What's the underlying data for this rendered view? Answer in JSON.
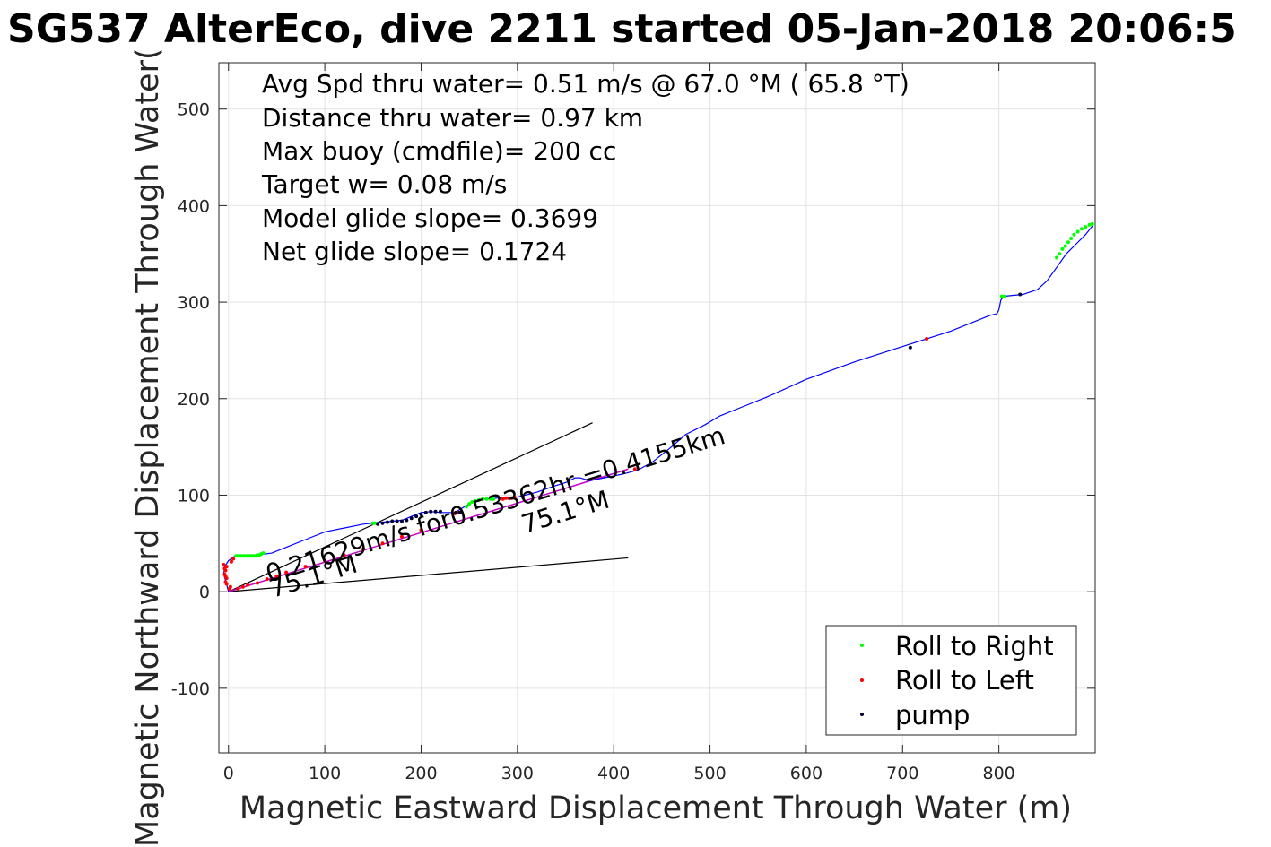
{
  "chart_data": {
    "type": "scatter",
    "title": "SG537 AlterEco, dive 2211 started 05-Jan-2018 20:06:5",
    "xlabel": "Magnetic Eastward Displacement Through Water (m)",
    "ylabel": "Magnetic Northward Displacement Through Water(",
    "xlim": [
      -10,
      900
    ],
    "ylim": [
      -167,
      548
    ],
    "xticks": [
      0,
      100,
      200,
      300,
      400,
      500,
      600,
      700,
      800
    ],
    "yticks": [
      -100,
      0,
      100,
      200,
      300,
      400,
      500
    ],
    "grid": true,
    "info_lines": [
      "Avg Spd thru water=  0.51 m/s @  67.0 °M ( 65.8 °T)",
      "Distance thru water=  0.97 km",
      "Max buoy (cmdfile)= 200 cc",
      "Target w= 0.08 m/s",
      "Model glide slope= 0.3699",
      "Net glide slope= 0.1724"
    ],
    "annotations": {
      "current": "0.21629m/s for0.53362hr =0.4155km",
      "heading_low": "75.1°M",
      "heading_high": "75.1°M"
    },
    "colors": {
      "track": "#0000ff",
      "roll_right": "#00ff00",
      "roll_left": "#ff0000",
      "pump": "#000033",
      "current_line": "#cc00cc",
      "wedge": "#000000"
    },
    "track": {
      "x": [
        0,
        -2,
        -5,
        -4,
        0,
        5,
        10,
        20,
        30,
        45,
        60,
        80,
        100,
        120,
        140,
        150,
        160,
        170,
        180,
        190,
        200,
        210,
        220,
        235,
        245,
        255,
        265,
        280,
        300,
        320,
        340,
        350,
        360,
        365,
        375,
        390,
        410,
        425,
        440,
        460,
        475,
        495,
        505,
        510,
        530,
        560,
        600,
        650,
        700,
        750,
        790,
        798,
        800,
        802,
        805,
        815,
        825,
        840,
        850,
        860,
        870,
        880,
        890,
        898
      ],
      "y": [
        0,
        8,
        18,
        26,
        32,
        36,
        38,
        37,
        38,
        40,
        46,
        54,
        62,
        66,
        70,
        71,
        72,
        73,
        74,
        78,
        82,
        83,
        82,
        82,
        88,
        94,
        96,
        97,
        98,
        103,
        110,
        113,
        118,
        118,
        115,
        118,
        122,
        126,
        134,
        150,
        163,
        173,
        179,
        182,
        190,
        202,
        220,
        238,
        254,
        270,
        286,
        288,
        292,
        302,
        306,
        307,
        308,
        313,
        322,
        336,
        350,
        360,
        370,
        380
      ]
    },
    "current_line": {
      "x": [
        0,
        415
      ],
      "y": [
        0,
        127
      ]
    },
    "wedge": {
      "upper": {
        "x": [
          0,
          378
        ],
        "y": [
          0,
          175
        ]
      },
      "lower": {
        "x": [
          0,
          415
        ],
        "y": [
          0,
          35
        ]
      }
    },
    "series": [
      {
        "name": "Roll to Right",
        "x": [
          8,
          10,
          13,
          16,
          18,
          20,
          22,
          24,
          26,
          28,
          30,
          32,
          34,
          36,
          150,
          152,
          247,
          250,
          253,
          256,
          260,
          264,
          268,
          272,
          275,
          803,
          806,
          860,
          863,
          866,
          869,
          872,
          875,
          878,
          882,
          886,
          890,
          894,
          897
        ],
        "y": [
          37,
          37,
          37,
          37,
          37,
          37,
          37,
          37,
          37,
          37,
          38,
          38,
          39,
          40,
          71,
          71,
          88,
          91,
          93,
          94,
          95,
          96,
          96,
          96,
          96,
          306,
          306,
          346,
          350,
          355,
          358,
          362,
          366,
          370,
          373,
          376,
          378,
          380,
          381
        ]
      },
      {
        "name": "Roll to Left",
        "x": [
          -3,
          -2,
          -4,
          -3,
          -2,
          -5,
          -4,
          -3,
          -2,
          1,
          2,
          3,
          5,
          10,
          15,
          20,
          30,
          40,
          50,
          60,
          80,
          100,
          120,
          140,
          160,
          180,
          200,
          235,
          238,
          241,
          285,
          288,
          291,
          294,
          297,
          422,
          725
        ],
        "y": [
          10,
          14,
          18,
          22,
          26,
          28,
          24,
          16,
          8,
          3,
          5,
          31,
          34,
          3,
          5,
          7,
          9,
          13,
          16,
          20,
          26,
          32,
          38,
          44,
          50,
          57,
          64,
          81,
          82,
          82,
          96,
          97,
          97,
          97,
          98,
          127,
          262
        ]
      },
      {
        "name": "pump",
        "x": [
          155,
          160,
          165,
          170,
          175,
          180,
          185,
          190,
          195,
          200,
          205,
          210,
          215,
          220,
          236,
          240,
          708,
          822
        ],
        "y": [
          70,
          71,
          72,
          73,
          73,
          73,
          74,
          76,
          78,
          80,
          82,
          83,
          83,
          83,
          82,
          82,
          253,
          308
        ]
      }
    ]
  }
}
